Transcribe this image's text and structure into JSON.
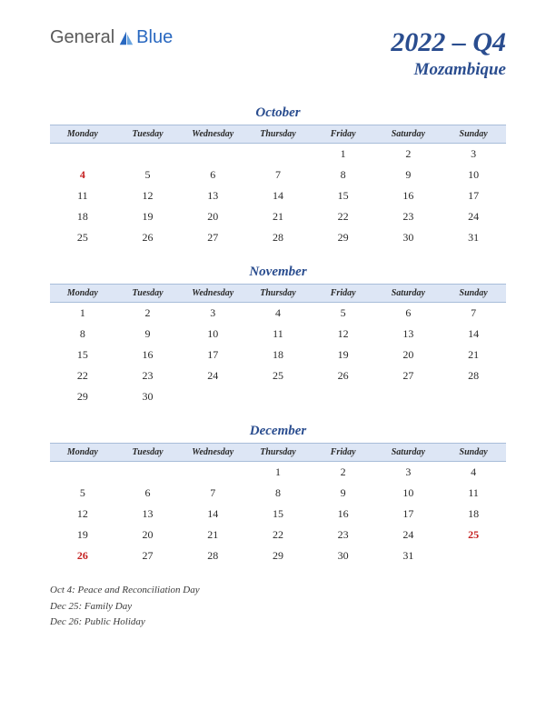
{
  "logo": {
    "part1": "General",
    "part2": "Blue"
  },
  "header": {
    "title": "2022 – Q4",
    "subtitle": "Mozambique"
  },
  "colors": {
    "brand": "#2a4d8f",
    "header_bg": "#dde6f5",
    "header_border": "#a8bdd9",
    "holiday": "#c41e1e",
    "text": "#2a2a2a",
    "logo_blue": "#2968c0",
    "logo_gray": "#5a5a5a"
  },
  "daynames": [
    "Monday",
    "Tuesday",
    "Wednesday",
    "Thursday",
    "Friday",
    "Saturday",
    "Sunday"
  ],
  "months": [
    {
      "name": "October",
      "lead": 4,
      "days": 31,
      "holidays": [
        4
      ]
    },
    {
      "name": "November",
      "lead": 0,
      "days": 30,
      "holidays": []
    },
    {
      "name": "December",
      "lead": 3,
      "days": 31,
      "holidays": [
        25,
        26
      ]
    }
  ],
  "holiday_notes": [
    "Oct 4: Peace and Reconciliation Day",
    "Dec 25: Family Day",
    "Dec 26: Public Holiday"
  ]
}
